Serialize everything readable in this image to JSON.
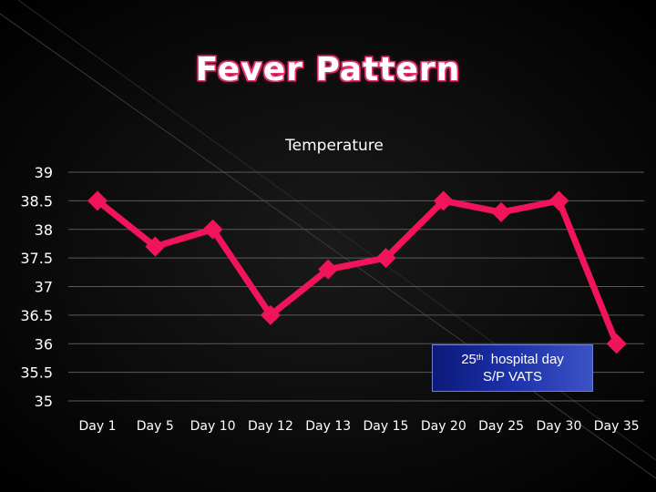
{
  "slide": {
    "title": "Fever Pattern"
  },
  "annotation": {
    "day_number": "25",
    "ordinal_suffix": "th",
    "line1_rest": "hospital day",
    "line2": "S/P  VATS"
  },
  "colors": {
    "series": "#f2145a",
    "background": "#000000",
    "grid": "#5a5a5a",
    "text": "#ffffff",
    "title_outline": "#e8336d"
  },
  "chart_data": {
    "type": "line",
    "title": "Temperature",
    "xlabel": "",
    "ylabel": "",
    "categories": [
      "Day 1",
      "Day 5",
      "Day 10",
      "Day 12",
      "Day 13",
      "Day 15",
      "Day 20",
      "Day 25",
      "Day 30",
      "Day 35"
    ],
    "series": [
      {
        "values": [
          38.5,
          37.7,
          38.0,
          36.5,
          37.3,
          37.5,
          38.5,
          38.3,
          38.5,
          36.0
        ]
      }
    ],
    "ylim": [
      35,
      39
    ],
    "yticks": [
      "35",
      "35.5",
      "36",
      "36.5",
      "37",
      "37.5",
      "38",
      "38.5",
      "39"
    ],
    "grid": true,
    "legend": "none",
    "marker": "diamond"
  }
}
